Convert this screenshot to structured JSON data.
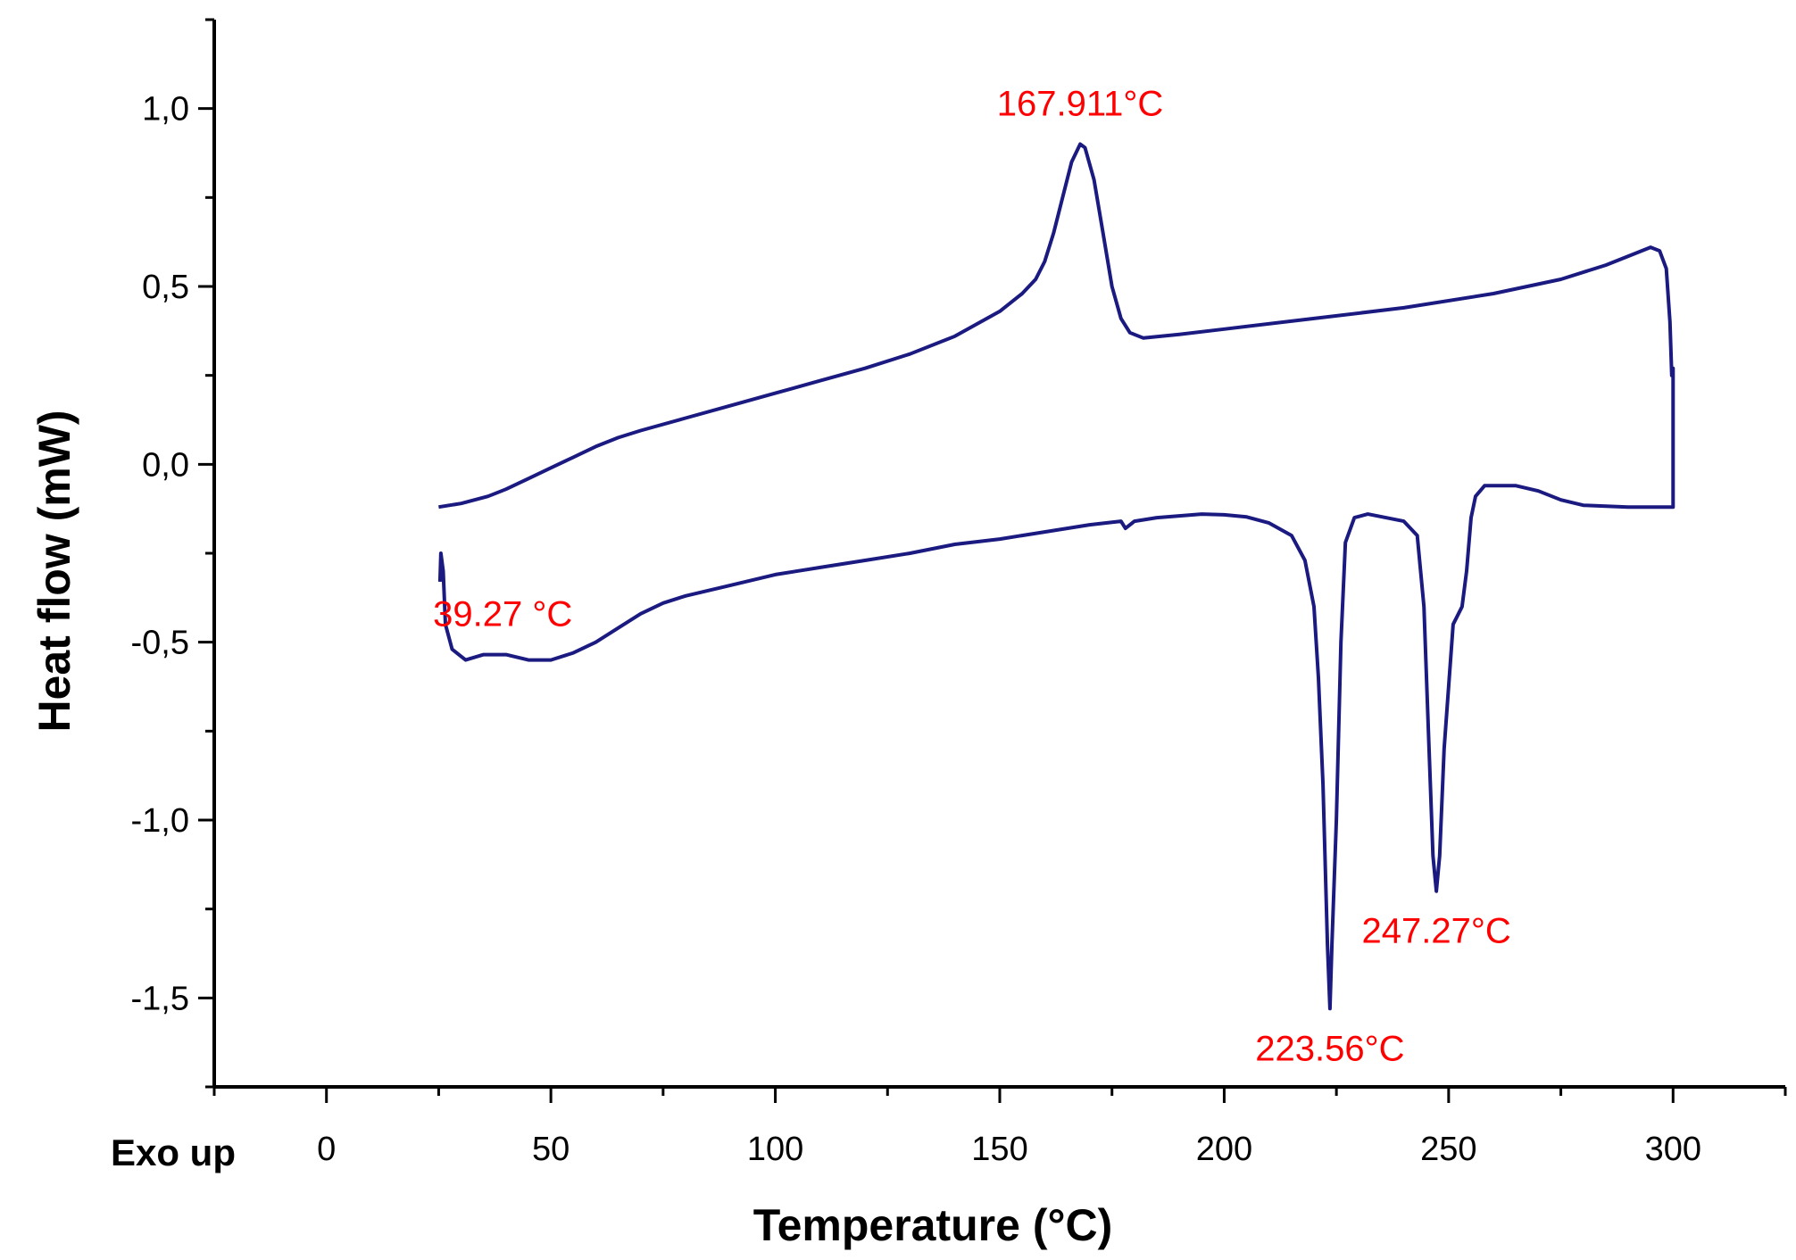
{
  "chart_data": {
    "type": "line",
    "title": "",
    "xlabel": "Temperature (°C)",
    "ylabel": "Heat flow (mW)",
    "xlim": [
      -25,
      325
    ],
    "ylim": [
      -1.75,
      1.25
    ],
    "x_ticks": [
      0,
      50,
      100,
      150,
      200,
      250,
      300
    ],
    "x_tick_labels": [
      "0",
      "50",
      "100",
      "150",
      "200",
      "250",
      "300"
    ],
    "y_ticks": [
      -1.5,
      -1.0,
      -0.5,
      0.0,
      0.5,
      1.0
    ],
    "y_tick_labels": [
      "-1,5",
      "-1,0",
      "-0,5",
      "0,0",
      "0,5",
      "1,0"
    ],
    "grid": false,
    "line_color": "#1a1a80",
    "annotation_color": "#ff0000",
    "footnote": "Exo up",
    "series": [
      {
        "points": [
          [
            25.0,
            -0.12
          ],
          [
            30,
            -0.11
          ],
          [
            36,
            -0.09
          ],
          [
            37,
            -0.085
          ],
          [
            40,
            -0.07
          ],
          [
            45,
            -0.04
          ],
          [
            50,
            -0.01
          ],
          [
            55,
            0.02
          ],
          [
            60,
            0.05
          ],
          [
            65,
            0.075
          ],
          [
            70,
            0.095
          ],
          [
            80,
            0.13
          ],
          [
            90,
            0.165
          ],
          [
            100,
            0.2
          ],
          [
            110,
            0.235
          ],
          [
            120,
            0.27
          ],
          [
            130,
            0.31
          ],
          [
            140,
            0.36
          ],
          [
            150,
            0.43
          ],
          [
            155,
            0.48
          ],
          [
            158,
            0.52
          ],
          [
            160,
            0.57
          ],
          [
            162,
            0.65
          ],
          [
            164,
            0.75
          ],
          [
            166,
            0.85
          ],
          [
            167.911,
            0.9
          ],
          [
            169,
            0.89
          ],
          [
            171,
            0.8
          ],
          [
            173,
            0.65
          ],
          [
            175,
            0.5
          ],
          [
            177,
            0.41
          ],
          [
            179,
            0.37
          ],
          [
            182,
            0.355
          ],
          [
            190,
            0.365
          ],
          [
            200,
            0.38
          ],
          [
            220,
            0.41
          ],
          [
            240,
            0.44
          ],
          [
            260,
            0.48
          ],
          [
            275,
            0.52
          ],
          [
            285,
            0.56
          ],
          [
            292,
            0.595
          ],
          [
            295,
            0.61
          ],
          [
            297,
            0.6
          ],
          [
            298.5,
            0.55
          ],
          [
            299.3,
            0.4
          ],
          [
            299.7,
            0.25
          ],
          [
            300,
            0.27
          ],
          [
            300,
            0.0
          ],
          [
            300,
            -0.12
          ],
          [
            299,
            -0.12
          ],
          [
            290,
            -0.12
          ],
          [
            280,
            -0.115
          ],
          [
            275,
            -0.1
          ],
          [
            270,
            -0.075
          ],
          [
            265,
            -0.06
          ],
          [
            258,
            -0.06
          ],
          [
            256,
            -0.09
          ],
          [
            255,
            -0.15
          ],
          [
            254,
            -0.3
          ],
          [
            253,
            -0.4
          ],
          [
            251,
            -0.45
          ],
          [
            249,
            -0.8
          ],
          [
            248,
            -1.1
          ],
          [
            247.27,
            -1.2
          ],
          [
            246.5,
            -1.1
          ],
          [
            245.5,
            -0.75
          ],
          [
            244.5,
            -0.4
          ],
          [
            243,
            -0.2
          ],
          [
            240,
            -0.16
          ],
          [
            236,
            -0.15
          ],
          [
            232,
            -0.14
          ],
          [
            229,
            -0.15
          ],
          [
            227,
            -0.22
          ],
          [
            226,
            -0.5
          ],
          [
            225,
            -1.0
          ],
          [
            224,
            -1.35
          ],
          [
            223.56,
            -1.53
          ],
          [
            223,
            -1.35
          ],
          [
            222,
            -0.9
          ],
          [
            221,
            -0.6
          ],
          [
            220,
            -0.4
          ],
          [
            218,
            -0.27
          ],
          [
            215,
            -0.2
          ],
          [
            210,
            -0.165
          ],
          [
            205,
            -0.148
          ],
          [
            200,
            -0.142
          ],
          [
            195,
            -0.14
          ],
          [
            185,
            -0.15
          ],
          [
            180,
            -0.16
          ],
          [
            178,
            -0.18
          ],
          [
            177,
            -0.16
          ],
          [
            170,
            -0.17
          ],
          [
            160,
            -0.19
          ],
          [
            150,
            -0.21
          ],
          [
            140,
            -0.225
          ],
          [
            130,
            -0.25
          ],
          [
            120,
            -0.27
          ],
          [
            110,
            -0.29
          ],
          [
            100,
            -0.31
          ],
          [
            90,
            -0.34
          ],
          [
            80,
            -0.37
          ],
          [
            75,
            -0.39
          ],
          [
            70,
            -0.42
          ],
          [
            65,
            -0.46
          ],
          [
            60,
            -0.5
          ],
          [
            55,
            -0.53
          ],
          [
            50,
            -0.55
          ],
          [
            45,
            -0.55
          ],
          [
            40,
            -0.535
          ],
          [
            35,
            -0.535
          ],
          [
            31,
            -0.55
          ],
          [
            28,
            -0.52
          ],
          [
            26.5,
            -0.45
          ],
          [
            26,
            -0.3
          ],
          [
            25.5,
            -0.25
          ],
          [
            25.3,
            -0.33
          ]
        ]
      }
    ],
    "annotations": [
      {
        "text": "167.911°C",
        "x": 167.911,
        "y": 0.9,
        "anchor": "above"
      },
      {
        "text": "39.27 °C",
        "x": 39.27,
        "y": -0.535,
        "anchor": "above"
      },
      {
        "text": "247.27°C",
        "x": 247.27,
        "y": -1.2,
        "anchor": "below"
      },
      {
        "text": "223.56°C",
        "x": 223.56,
        "y": -1.53,
        "anchor": "below"
      }
    ]
  }
}
